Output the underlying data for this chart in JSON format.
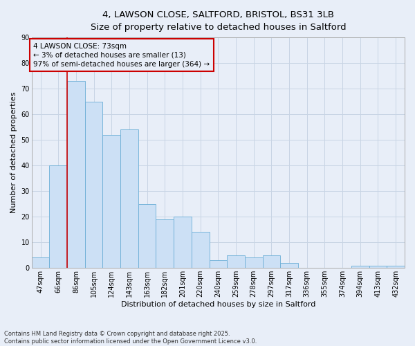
{
  "title_line1": "4, LAWSON CLOSE, SALTFORD, BRISTOL, BS31 3LB",
  "title_line2": "Size of property relative to detached houses in Saltford",
  "xlabel": "Distribution of detached houses by size in Saltford",
  "ylabel": "Number of detached properties",
  "categories": [
    "47sqm",
    "66sqm",
    "86sqm",
    "105sqm",
    "124sqm",
    "143sqm",
    "163sqm",
    "182sqm",
    "201sqm",
    "220sqm",
    "240sqm",
    "259sqm",
    "278sqm",
    "297sqm",
    "317sqm",
    "336sqm",
    "355sqm",
    "374sqm",
    "394sqm",
    "413sqm",
    "432sqm"
  ],
  "values": [
    4,
    40,
    73,
    65,
    52,
    54,
    25,
    19,
    20,
    14,
    3,
    5,
    4,
    5,
    2,
    0,
    0,
    0,
    1,
    1,
    1
  ],
  "bar_color": "#cce0f5",
  "bar_edge_color": "#6baed6",
  "grid_color": "#c8d4e4",
  "background_color": "#e8eef8",
  "vline_x": 1.5,
  "vline_color": "#cc0000",
  "annotation_text": "4 LAWSON CLOSE: 73sqm\n← 3% of detached houses are smaller (13)\n97% of semi-detached houses are larger (364) →",
  "annotation_box_color": "#cc0000",
  "ylim": [
    0,
    90
  ],
  "yticks": [
    0,
    10,
    20,
    30,
    40,
    50,
    60,
    70,
    80,
    90
  ],
  "footer_text": "Contains HM Land Registry data © Crown copyright and database right 2025.\nContains public sector information licensed under the Open Government Licence v3.0.",
  "title_fontsize": 9.5,
  "subtitle_fontsize": 8.5,
  "axis_label_fontsize": 8,
  "tick_fontsize": 7,
  "annotation_fontsize": 7.5
}
